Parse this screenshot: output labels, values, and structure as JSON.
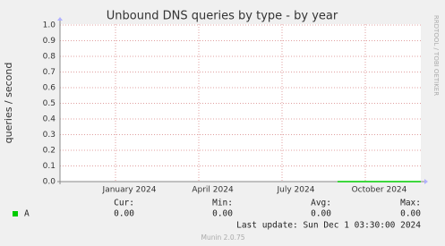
{
  "chart_data": {
    "type": "line",
    "title": "Unbound DNS queries by type - by year",
    "y_label": "queries / second",
    "side_text": "RRDTOOL / TOBI OETIKER",
    "x": [
      "2024-09",
      "2024-12"
    ],
    "xlim": [
      "2023-11",
      "2024-12"
    ],
    "xticks": [
      {
        "value": "2024-01",
        "label": "January 2024"
      },
      {
        "value": "2024-04",
        "label": "April 2024"
      },
      {
        "value": "2024-07",
        "label": "July 2024"
      },
      {
        "value": "2024-10",
        "label": "October 2024"
      }
    ],
    "ylim": [
      0,
      1
    ],
    "yticks": [
      {
        "value": 0,
        "label": "0.0"
      },
      0.1,
      0.2,
      0.3,
      0.4,
      0.5,
      0.6,
      0.7,
      0.8,
      0.9,
      {
        "value": 1,
        "label": "1.0"
      }
    ],
    "grid": true,
    "series": [
      {
        "name": "A",
        "color": "#00cc00",
        "values": [
          0,
          0
        ],
        "summary": [
          {
            "value": 0,
            "label": "0.00"
          },
          {
            "value": 0,
            "label": "0.00"
          },
          {
            "value": 0,
            "label": "0.00"
          },
          {
            "value": 0,
            "label": "0.00"
          }
        ]
      }
    ],
    "summary_headers": [
      "Cur:",
      "Min:",
      "Avg:",
      "Max:"
    ],
    "last_update": "Last update: Sun Dec  1 03:30:00 2024",
    "footer": "Munin 2.0.75"
  }
}
